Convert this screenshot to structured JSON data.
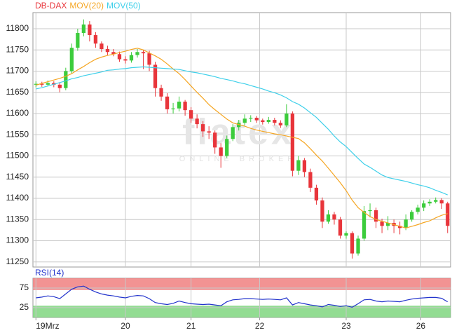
{
  "chart_data": [
    {
      "type": "candlestick",
      "watermark": "flatex",
      "watermark_sub": "ONLINE BROKER",
      "xlim": [
        -0.5,
        69.5
      ],
      "xticks": [
        {
          "value": 0,
          "label": "19Mrz"
        },
        {
          "value": 15,
          "label": "20"
        },
        {
          "value": 26,
          "label": "21"
        },
        {
          "value": 37.5,
          "label": "22"
        },
        {
          "value": 52,
          "label": "23"
        },
        {
          "value": 64.5,
          "label": "26"
        }
      ],
      "ylim": [
        11238,
        11838
      ],
      "yticks": [
        11250,
        11300,
        11350,
        11400,
        11450,
        11500,
        11550,
        11600,
        11650,
        11700,
        11750,
        11800
      ],
      "grid": true,
      "series": [
        {
          "name": "DB-DAX",
          "color": "#e8353b",
          "up_color": "#3ccc3c",
          "open": [
            11668,
            11670,
            11668,
            11672,
            11668,
            11660,
            11700,
            11755,
            11790,
            11810,
            11785,
            11765,
            11752,
            11745,
            11740,
            11728,
            11725,
            11738,
            11745,
            11742,
            11715,
            11660,
            11640,
            11610,
            11612,
            11628,
            11608,
            11588,
            11575,
            11558,
            11555,
            11520,
            11500,
            11540,
            11568,
            11578,
            11588,
            11590,
            11584,
            11580,
            11585,
            11578,
            11572,
            11600,
            11465,
            11490,
            11462,
            11425,
            11395,
            11345,
            11362,
            11350,
            11312,
            11318,
            11270,
            11305,
            11370,
            11372,
            11345,
            11335,
            11342,
            11335,
            11330,
            11350,
            11368,
            11378,
            11388,
            11392,
            11396,
            11388
          ],
          "high": [
            11676,
            11675,
            11678,
            11676,
            11672,
            11708,
            11765,
            11800,
            11822,
            11818,
            11792,
            11770,
            11760,
            11752,
            11746,
            11735,
            11745,
            11752,
            11750,
            11748,
            11722,
            11668,
            11648,
            11625,
            11640,
            11632,
            11615,
            11598,
            11582,
            11570,
            11560,
            11530,
            11548,
            11575,
            11585,
            11598,
            11596,
            11594,
            11588,
            11592,
            11590,
            11584,
            11622,
            11605,
            11500,
            11495,
            11470,
            11432,
            11402,
            11372,
            11368,
            11356,
            11322,
            11322,
            11312,
            11382,
            11388,
            11378,
            11352,
            11358,
            11350,
            11345,
            11362,
            11372,
            11385,
            11395,
            11398,
            11402,
            11400,
            11392
          ],
          "low": [
            11662,
            11663,
            11664,
            11662,
            11650,
            11655,
            11695,
            11748,
            11782,
            11770,
            11755,
            11745,
            11738,
            11735,
            11722,
            11718,
            11720,
            11732,
            11705,
            11700,
            11640,
            11630,
            11600,
            11600,
            11605,
            11595,
            11578,
            11565,
            11545,
            11540,
            11505,
            11472,
            11495,
            11535,
            11560,
            11572,
            11580,
            11578,
            11574,
            11576,
            11572,
            11566,
            11568,
            11452,
            11455,
            11450,
            11415,
            11385,
            11330,
            11340,
            11338,
            11305,
            11305,
            11258,
            11265,
            11300,
            11355,
            11330,
            11318,
            11325,
            11318,
            11315,
            11325,
            11345,
            11362,
            11370,
            11382,
            11388,
            11375,
            11318
          ],
          "close": [
            11670,
            11668,
            11672,
            11668,
            11660,
            11700,
            11755,
            11790,
            11810,
            11785,
            11765,
            11752,
            11745,
            11740,
            11728,
            11725,
            11738,
            11745,
            11742,
            11715,
            11660,
            11640,
            11610,
            11612,
            11628,
            11608,
            11588,
            11575,
            11558,
            11555,
            11520,
            11500,
            11540,
            11568,
            11578,
            11588,
            11590,
            11584,
            11580,
            11585,
            11578,
            11572,
            11600,
            11465,
            11490,
            11462,
            11425,
            11395,
            11345,
            11362,
            11350,
            11312,
            11318,
            11270,
            11305,
            11370,
            11372,
            11345,
            11335,
            11342,
            11335,
            11330,
            11350,
            11368,
            11378,
            11388,
            11392,
            11396,
            11388,
            11335
          ]
        },
        {
          "name": "MOV(20)",
          "color": "#f5a623",
          "values": [
            11667,
            11671,
            11675,
            11679,
            11683,
            11688,
            11694,
            11703,
            11711,
            11720,
            11728,
            11733,
            11737,
            11740,
            11744,
            11747,
            11751,
            11754,
            11750,
            11743,
            11736,
            11728,
            11717,
            11705,
            11694,
            11680,
            11665,
            11650,
            11636,
            11621,
            11609,
            11598,
            11587,
            11578,
            11574,
            11570,
            11565,
            11561,
            11558,
            11555,
            11552,
            11550,
            11547,
            11544,
            11541,
            11531,
            11517,
            11502,
            11488,
            11471,
            11454,
            11437,
            11418,
            11396,
            11378,
            11367,
            11357,
            11350,
            11346,
            11342,
            11338,
            11334,
            11330,
            11334,
            11338,
            11343,
            11347,
            11354,
            11360,
            11364
          ]
        },
        {
          "name": "MOV(50)",
          "color": "#3fd0ea",
          "values": [
            11658,
            11661,
            11665,
            11669,
            11673,
            11677,
            11682,
            11685,
            11689,
            11692,
            11695,
            11698,
            11702,
            11703,
            11705,
            11706,
            11708,
            11709,
            11710,
            11709,
            11708,
            11707,
            11706,
            11705,
            11704,
            11701,
            11698,
            11696,
            11693,
            11690,
            11687,
            11683,
            11680,
            11677,
            11673,
            11670,
            11666,
            11662,
            11658,
            11653,
            11649,
            11644,
            11637,
            11628,
            11622,
            11613,
            11602,
            11591,
            11577,
            11563,
            11547,
            11533,
            11522,
            11508,
            11494,
            11481,
            11473,
            11464,
            11455,
            11449,
            11446,
            11443,
            11440,
            11436,
            11432,
            11429,
            11425,
            11419,
            11414,
            11408
          ]
        }
      ]
    },
    {
      "type": "line",
      "xlim": [
        -0.5,
        69.5
      ],
      "ylim": [
        0,
        100
      ],
      "yticks": [
        25,
        75
      ],
      "bands": [
        {
          "from": 70,
          "to": 100,
          "color": "#f08080"
        },
        {
          "from": 0,
          "to": 30,
          "color": "#7fd67f"
        }
      ],
      "series": [
        {
          "name": "RSI(14)",
          "color": "#2233cc",
          "values": [
            50,
            52,
            55,
            53,
            48,
            60,
            72,
            78,
            80,
            72,
            65,
            60,
            57,
            55,
            52,
            50,
            54,
            56,
            55,
            48,
            38,
            35,
            33,
            36,
            42,
            38,
            35,
            34,
            33,
            34,
            32,
            30,
            40,
            45,
            46,
            48,
            48,
            47,
            46,
            47,
            46,
            45,
            50,
            32,
            38,
            35,
            32,
            30,
            27,
            33,
            31,
            28,
            30,
            26,
            35,
            45,
            46,
            42,
            40,
            42,
            41,
            40,
            44,
            47,
            49,
            50,
            51,
            51,
            49,
            40
          ]
        }
      ]
    }
  ]
}
